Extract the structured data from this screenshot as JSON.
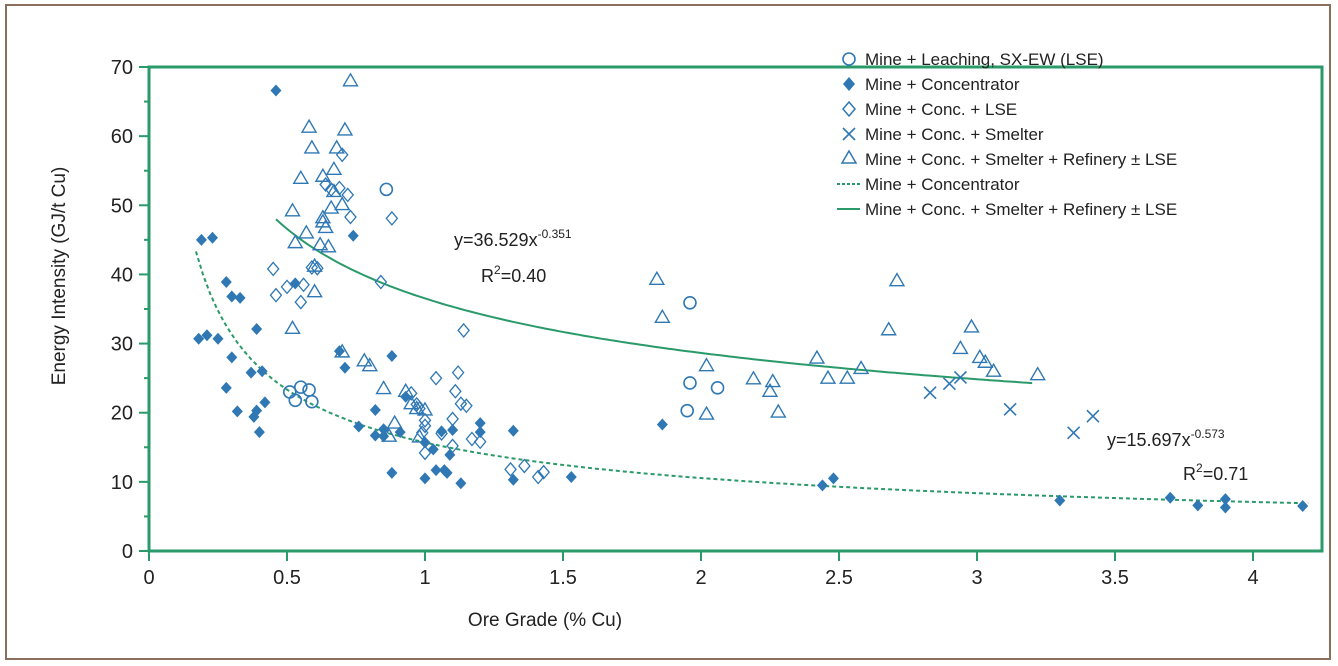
{
  "colors": {
    "green": "#2a9a6a",
    "blue": "#2f78b4",
    "frame": "#8b6f5c"
  },
  "chart_data": {
    "type": "scatter",
    "xlabel": "Ore Grade (% Cu)",
    "ylabel": "Energy Intensity (GJ/t Cu)",
    "xlim": [
      0,
      4.25
    ],
    "ylim": [
      0,
      70
    ],
    "x_ticks": [
      0,
      0.5,
      1,
      1.5,
      2,
      2.5,
      3,
      3.5,
      4
    ],
    "y_ticks": [
      0,
      10,
      20,
      30,
      40,
      50,
      60,
      70
    ],
    "x_tick_labels": [
      "0",
      "0.5",
      "1",
      "1.5",
      "2",
      "2.5",
      "3",
      "3.5",
      "4"
    ],
    "y_tick_labels": [
      "0",
      "10",
      "20",
      "30",
      "40",
      "50",
      "60",
      "70"
    ],
    "grid": false,
    "legend_position": "top-right",
    "legend": [
      {
        "label": "Mine + Leaching, SX-EW (LSE)",
        "marker": "circle-open"
      },
      {
        "label": "Mine + Concentrator",
        "marker": "diamond-filled"
      },
      {
        "label": "Mine + Conc. + LSE",
        "marker": "diamond-open"
      },
      {
        "label": "Mine + Conc. + Smelter",
        "marker": "x"
      },
      {
        "label": "Mine + Conc. + Smelter + Refinery ± LSE",
        "marker": "triangle-open"
      },
      {
        "label": "Mine + Concentrator",
        "marker": "dashed-line"
      },
      {
        "label": "Mine + Conc. + Smelter + Refinery ± LSE",
        "marker": "solid-line"
      }
    ],
    "series": [
      {
        "name": "Mine + Leaching, SX-EW (LSE)",
        "marker": "circle-open",
        "points": [
          [
            0.51,
            23.0
          ],
          [
            0.53,
            21.8
          ],
          [
            0.55,
            23.7
          ],
          [
            0.58,
            23.3
          ],
          [
            0.59,
            21.6
          ],
          [
            0.86,
            52.3
          ],
          [
            1.96,
            35.9
          ],
          [
            1.95,
            20.3
          ],
          [
            1.96,
            24.3
          ],
          [
            2.06,
            23.6
          ]
        ]
      },
      {
        "name": "Mine + Concentrator",
        "marker": "diamond-filled",
        "points": [
          [
            0.18,
            30.7
          ],
          [
            0.21,
            31.2
          ],
          [
            0.25,
            30.7
          ],
          [
            0.19,
            45.0
          ],
          [
            0.23,
            45.3
          ],
          [
            0.28,
            38.9
          ],
          [
            0.3,
            36.8
          ],
          [
            0.33,
            36.6
          ],
          [
            0.28,
            23.6
          ],
          [
            0.3,
            28.0
          ],
          [
            0.32,
            20.2
          ],
          [
            0.37,
            25.8
          ],
          [
            0.39,
            32.1
          ],
          [
            0.38,
            19.4
          ],
          [
            0.39,
            20.3
          ],
          [
            0.4,
            17.2
          ],
          [
            0.41,
            26.0
          ],
          [
            0.42,
            21.5
          ],
          [
            0.46,
            66.6
          ],
          [
            0.53,
            38.7
          ],
          [
            0.69,
            28.9
          ],
          [
            0.71,
            26.5
          ],
          [
            0.74,
            45.6
          ],
          [
            0.76,
            18.0
          ],
          [
            0.82,
            20.4
          ],
          [
            0.82,
            16.7
          ],
          [
            0.85,
            17.6
          ],
          [
            0.85,
            16.6
          ],
          [
            0.88,
            28.2
          ],
          [
            0.88,
            11.3
          ],
          [
            0.91,
            17.2
          ],
          [
            0.93,
            22.3
          ],
          [
            1.0,
            10.5
          ],
          [
            1.0,
            15.7
          ],
          [
            1.03,
            14.7
          ],
          [
            1.04,
            11.7
          ],
          [
            1.06,
            17.3
          ],
          [
            1.07,
            11.7
          ],
          [
            1.08,
            11.3
          ],
          [
            1.09,
            13.9
          ],
          [
            1.1,
            17.5
          ],
          [
            1.13,
            9.8
          ],
          [
            1.2,
            18.5
          ],
          [
            1.2,
            17.2
          ],
          [
            1.32,
            10.3
          ],
          [
            1.32,
            17.4
          ],
          [
            1.53,
            10.7
          ],
          [
            1.86,
            18.3
          ],
          [
            2.44,
            9.5
          ],
          [
            2.48,
            10.5
          ],
          [
            3.3,
            7.3
          ],
          [
            3.7,
            7.7
          ],
          [
            3.8,
            6.6
          ],
          [
            3.9,
            7.5
          ],
          [
            3.9,
            6.3
          ],
          [
            4.18,
            6.5
          ]
        ]
      },
      {
        "name": "Mine + Conc. + LSE",
        "marker": "diamond-open",
        "points": [
          [
            0.45,
            40.8
          ],
          [
            0.46,
            37.0
          ],
          [
            0.5,
            38.2
          ],
          [
            0.55,
            36.0
          ],
          [
            0.56,
            38.5
          ],
          [
            0.59,
            41.0
          ],
          [
            0.61,
            40.9
          ],
          [
            0.64,
            53.0
          ],
          [
            0.66,
            52.3
          ],
          [
            0.69,
            52.5
          ],
          [
            0.7,
            57.3
          ],
          [
            0.72,
            51.5
          ],
          [
            0.73,
            48.3
          ],
          [
            0.84,
            38.9
          ],
          [
            0.88,
            48.1
          ],
          [
            0.95,
            22.8
          ],
          [
            0.97,
            21.2
          ],
          [
            0.98,
            20.6
          ],
          [
            0.99,
            17.1
          ],
          [
            1.0,
            14.2
          ],
          [
            1.0,
            18.1
          ],
          [
            1.0,
            18.9
          ],
          [
            1.04,
            25.0
          ],
          [
            1.06,
            17.0
          ],
          [
            1.1,
            15.2
          ],
          [
            1.1,
            19.1
          ],
          [
            1.11,
            23.1
          ],
          [
            1.12,
            25.8
          ],
          [
            1.13,
            21.3
          ],
          [
            1.14,
            31.9
          ],
          [
            1.15,
            21.0
          ],
          [
            1.17,
            16.2
          ],
          [
            1.2,
            15.8
          ],
          [
            1.31,
            11.8
          ],
          [
            1.36,
            12.3
          ],
          [
            1.41,
            10.7
          ],
          [
            1.43,
            11.4
          ]
        ]
      },
      {
        "name": "Mine + Conc. + Smelter",
        "marker": "x",
        "points": [
          [
            2.83,
            22.9
          ],
          [
            2.9,
            24.2
          ],
          [
            2.94,
            25.1
          ],
          [
            3.12,
            20.5
          ],
          [
            3.35,
            17.1
          ],
          [
            3.42,
            19.5
          ]
        ]
      },
      {
        "name": "Mine + Conc. + Smelter + Refinery ± LSE",
        "marker": "triangle-open",
        "points": [
          [
            0.52,
            32.2
          ],
          [
            0.52,
            49.2
          ],
          [
            0.53,
            44.6
          ],
          [
            0.55,
            53.9
          ],
          [
            0.57,
            46.0
          ],
          [
            0.58,
            61.3
          ],
          [
            0.59,
            58.3
          ],
          [
            0.6,
            41.2
          ],
          [
            0.6,
            37.5
          ],
          [
            0.62,
            44.3
          ],
          [
            0.63,
            48.2
          ],
          [
            0.63,
            54.2
          ],
          [
            0.63,
            47.6
          ],
          [
            0.64,
            46.8
          ],
          [
            0.65,
            44.0
          ],
          [
            0.66,
            49.6
          ],
          [
            0.67,
            55.2
          ],
          [
            0.67,
            52.0
          ],
          [
            0.68,
            58.3
          ],
          [
            0.7,
            50.1
          ],
          [
            0.7,
            28.8
          ],
          [
            0.71,
            60.9
          ],
          [
            0.73,
            68.0
          ],
          [
            0.78,
            27.5
          ],
          [
            0.8,
            26.8
          ],
          [
            0.85,
            23.5
          ],
          [
            0.87,
            16.6
          ],
          [
            0.89,
            18.5
          ],
          [
            0.93,
            23.1
          ],
          [
            0.95,
            21.3
          ],
          [
            0.97,
            20.6
          ],
          [
            0.98,
            16.5
          ],
          [
            1.0,
            20.4
          ],
          [
            1.84,
            39.3
          ],
          [
            1.86,
            33.8
          ],
          [
            2.02,
            26.8
          ],
          [
            2.02,
            19.8
          ],
          [
            2.19,
            24.9
          ],
          [
            2.25,
            23.1
          ],
          [
            2.26,
            24.5
          ],
          [
            2.28,
            20.1
          ],
          [
            2.42,
            27.9
          ],
          [
            2.46,
            25.0
          ],
          [
            2.53,
            25.0
          ],
          [
            2.58,
            26.4
          ],
          [
            2.68,
            32.0
          ],
          [
            2.71,
            39.1
          ],
          [
            2.94,
            29.3
          ],
          [
            2.98,
            32.4
          ],
          [
            3.01,
            28.0
          ],
          [
            3.03,
            27.3
          ],
          [
            3.06,
            26.0
          ],
          [
            3.22,
            25.5
          ]
        ]
      }
    ],
    "fits": [
      {
        "name": "Mine + Concentrator",
        "style": "dashed",
        "a": 15.697,
        "b": -0.573,
        "x_range": [
          0.17,
          4.2
        ],
        "equation_text": "y=15.697x",
        "exponent_text": "-0.573",
        "r2_prefix": "R",
        "r2_sup": "2",
        "r2_value": "=0.71"
      },
      {
        "name": "Mine + Conc. + Smelter + Refinery ± LSE",
        "style": "solid",
        "a": 36.529,
        "b": -0.351,
        "x_range": [
          0.46,
          3.2
        ],
        "equation_text": "y=36.529x",
        "exponent_text": "-0.351",
        "r2_prefix": "R",
        "r2_sup": "2",
        "r2_value": "=0.40"
      }
    ]
  }
}
